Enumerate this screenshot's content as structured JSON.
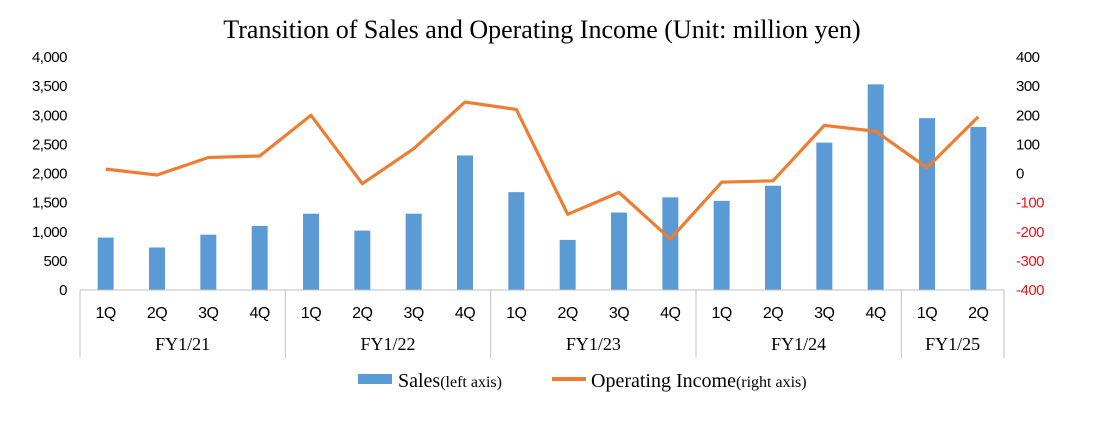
{
  "chart_data": {
    "type": "bar",
    "title": "Transition of Sales and Operating Income (Unit: million yen)",
    "categories": [
      "1Q",
      "2Q",
      "3Q",
      "4Q",
      "1Q",
      "2Q",
      "3Q",
      "4Q",
      "1Q",
      "2Q",
      "3Q",
      "4Q",
      "1Q",
      "2Q",
      "3Q",
      "4Q",
      "1Q",
      "2Q"
    ],
    "groups": [
      {
        "label": "FY1/21",
        "count": 4
      },
      {
        "label": "FY1/22",
        "count": 4
      },
      {
        "label": "FY1/23",
        "count": 4
      },
      {
        "label": "FY1/24",
        "count": 4
      },
      {
        "label": "FY1/25",
        "count": 2
      }
    ],
    "series": [
      {
        "name": "Sales",
        "name_suffix": "(left axis)",
        "type": "bar",
        "axis": "left",
        "color": "#5b9bd5",
        "values": [
          900,
          730,
          950,
          1100,
          1310,
          1020,
          1310,
          2310,
          1680,
          860,
          1330,
          1590,
          1530,
          1790,
          2530,
          3530,
          2950,
          2800
        ]
      },
      {
        "name": "Operating Income",
        "name_suffix": "(right axis)",
        "type": "line",
        "axis": "right",
        "color": "#ed7d31",
        "values": [
          15,
          -5,
          55,
          60,
          200,
          -35,
          85,
          245,
          220,
          -140,
          -65,
          -225,
          -30,
          -25,
          165,
          145,
          20,
          195
        ]
      }
    ],
    "y_left": {
      "ylim": [
        0,
        4000
      ],
      "ticks": [
        "4,000",
        "3,500",
        "3,000",
        "2,500",
        "2,000",
        "1,500",
        "1,000",
        "500",
        "0"
      ]
    },
    "y_right": {
      "ylim": [
        -400,
        400
      ],
      "ticks": [
        "400",
        "300",
        "200",
        "100",
        "0",
        "-100",
        "-200",
        "-300",
        "-400"
      ],
      "negative_color": "#e8141b"
    },
    "grid": false,
    "legend_position": "bottom"
  }
}
